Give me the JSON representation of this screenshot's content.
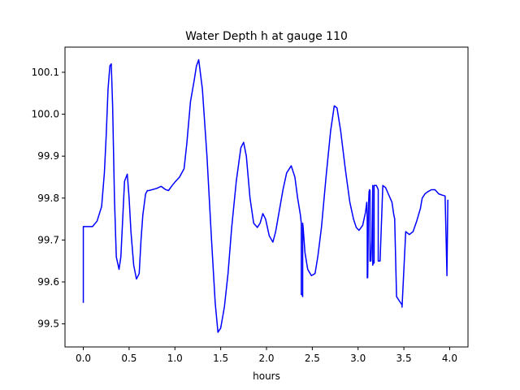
{
  "chart_data": {
    "type": "line",
    "title": "Water Depth h at gauge 110",
    "xlabel": "hours",
    "ylabel": "",
    "xlim": [
      -0.2,
      4.2
    ],
    "ylim": [
      99.445,
      100.16
    ],
    "xticks": [
      0.0,
      0.5,
      1.0,
      1.5,
      2.0,
      2.5,
      3.0,
      3.5,
      4.0
    ],
    "xtick_labels": [
      "0.0",
      "0.5",
      "1.0",
      "1.5",
      "2.0",
      "2.5",
      "3.0",
      "3.5",
      "4.0"
    ],
    "yticks": [
      99.5,
      99.6,
      99.7,
      99.8,
      99.9,
      100.0,
      100.1
    ],
    "ytick_labels": [
      "99.5",
      "99.6",
      "99.7",
      "99.8",
      "99.9",
      "100.0",
      "100.1"
    ],
    "grid": false,
    "series": [
      {
        "color": "#0000ff",
        "x": [
          0.0,
          0.0,
          0.02,
          0.1,
          0.15,
          0.2,
          0.23,
          0.25,
          0.27,
          0.29,
          0.305,
          0.32,
          0.34,
          0.36,
          0.39,
          0.41,
          0.43,
          0.45,
          0.48,
          0.5,
          0.52,
          0.55,
          0.58,
          0.61,
          0.63,
          0.65,
          0.68,
          0.7,
          0.72,
          0.75,
          0.8,
          0.85,
          0.9,
          0.93,
          0.97,
          1.0,
          1.05,
          1.1,
          1.13,
          1.17,
          1.21,
          1.235,
          1.26,
          1.3,
          1.35,
          1.4,
          1.44,
          1.47,
          1.5,
          1.54,
          1.58,
          1.62,
          1.67,
          1.72,
          1.75,
          1.78,
          1.82,
          1.86,
          1.9,
          1.93,
          1.96,
          1.99,
          2.03,
          2.07,
          2.1,
          2.14,
          2.18,
          2.22,
          2.27,
          2.31,
          2.34,
          2.37,
          2.38,
          2.38,
          2.39,
          2.395,
          2.395,
          2.4,
          2.42,
          2.45,
          2.49,
          2.53,
          2.56,
          2.6,
          2.65,
          2.7,
          2.74,
          2.77,
          2.81,
          2.86,
          2.91,
          2.95,
          2.98,
          3.01,
          3.05,
          3.08,
          3.095,
          3.1,
          3.1,
          3.105,
          3.115,
          3.12,
          3.125,
          3.13,
          3.13,
          3.14,
          3.15,
          3.16,
          3.16,
          3.17,
          3.175,
          3.175,
          3.2,
          3.22,
          3.22,
          3.24,
          3.27,
          3.3,
          3.33,
          3.37,
          3.39,
          3.4,
          3.4,
          3.42,
          3.45,
          3.48,
          3.48,
          3.52,
          3.56,
          3.6,
          3.64,
          3.68,
          3.7,
          3.73,
          3.76,
          3.8,
          3.84,
          3.88,
          3.92,
          3.95,
          3.95,
          3.97,
          3.97,
          3.98,
          3.98
        ],
        "y": [
          99.55,
          99.732,
          99.732,
          99.732,
          99.745,
          99.78,
          99.86,
          99.95,
          100.06,
          100.115,
          100.12,
          100.02,
          99.8,
          99.66,
          99.63,
          99.66,
          99.75,
          99.84,
          99.857,
          99.8,
          99.72,
          99.64,
          99.607,
          99.62,
          99.7,
          99.76,
          99.81,
          99.818,
          99.818,
          99.82,
          99.823,
          99.828,
          99.82,
          99.818,
          99.83,
          99.838,
          99.85,
          99.87,
          99.93,
          100.03,
          100.08,
          100.115,
          100.13,
          100.06,
          99.9,
          99.7,
          99.55,
          99.48,
          99.49,
          99.54,
          99.62,
          99.73,
          99.84,
          99.92,
          99.933,
          99.9,
          99.8,
          99.74,
          99.73,
          99.74,
          99.763,
          99.75,
          99.71,
          99.695,
          99.72,
          99.77,
          99.82,
          99.86,
          99.877,
          99.85,
          99.8,
          99.76,
          99.74,
          99.57,
          99.57,
          99.565,
          99.74,
          99.73,
          99.67,
          99.63,
          99.615,
          99.62,
          99.66,
          99.73,
          99.85,
          99.96,
          100.02,
          100.015,
          99.96,
          99.87,
          99.79,
          99.75,
          99.73,
          99.723,
          99.735,
          99.765,
          99.79,
          99.75,
          99.61,
          99.61,
          99.79,
          99.815,
          99.82,
          99.818,
          99.65,
          99.65,
          99.7,
          99.83,
          99.64,
          99.65,
          99.645,
          99.83,
          99.83,
          99.82,
          99.65,
          99.65,
          99.83,
          99.825,
          99.81,
          99.79,
          99.76,
          99.75,
          99.745,
          99.565,
          99.555,
          99.545,
          99.54,
          99.72,
          99.713,
          99.72,
          99.745,
          99.775,
          99.8,
          99.81,
          99.815,
          99.82,
          99.82,
          99.81,
          99.807,
          99.805,
          99.805,
          99.62,
          99.615,
          99.795,
          99.793
        ]
      }
    ]
  }
}
